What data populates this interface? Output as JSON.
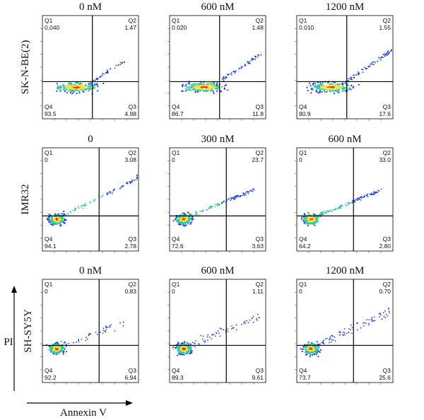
{
  "chart_data": {
    "type": "scatter",
    "subtype": "flow-cytometry-density-quadrant-plots",
    "axis_x_label": "Annexin V",
    "axis_y_label": "PI",
    "rows": [
      {
        "cell_line": "SK-N-BE(2)",
        "panels": [
          {
            "dose": "0 nM",
            "quadrants": {
              "Q1": "0.040",
              "Q2": "1.47",
              "Q3": "4.98",
              "Q4": "93.5"
            }
          },
          {
            "dose": "600 nM",
            "quadrants": {
              "Q1": "0.020",
              "Q2": "1.48",
              "Q3": "11.8",
              "Q4": "86.7"
            }
          },
          {
            "dose": "1200 nM",
            "quadrants": {
              "Q1": "0.010",
              "Q2": "1.55",
              "Q3": "17.6",
              "Q4": "80.9"
            }
          }
        ]
      },
      {
        "cell_line": "IMR32",
        "panels": [
          {
            "dose": "0",
            "quadrants": {
              "Q1": "0",
              "Q2": "3.08",
              "Q3": "2.78",
              "Q4": "94.1"
            }
          },
          {
            "dose": "300 nM",
            "quadrants": {
              "Q1": "0",
              "Q2": "23.7",
              "Q3": "3.63",
              "Q4": "72.6"
            }
          },
          {
            "dose": "600 nM",
            "quadrants": {
              "Q1": "0",
              "Q2": "33.0",
              "Q3": "2.80",
              "Q4": "64.2"
            }
          }
        ]
      },
      {
        "cell_line": "SH-SY5Y",
        "panels": [
          {
            "dose": "0 nM",
            "quadrants": {
              "Q1": "0",
              "Q2": "0.83",
              "Q3": "6.94",
              "Q4": "92.2"
            }
          },
          {
            "dose": "600 nM",
            "quadrants": {
              "Q1": "0",
              "Q2": "1.11",
              "Q3": "9.61",
              "Q4": "89.3"
            }
          },
          {
            "dose": "1200 nM",
            "quadrants": {
              "Q1": "0",
              "Q2": "0.70",
              "Q3": "25.6",
              "Q4": "73.7"
            }
          }
        ]
      }
    ],
    "quadrant_names": [
      "Q1",
      "Q2",
      "Q3",
      "Q4"
    ],
    "colors": {
      "density_low": "#1f3fd6",
      "density_mid": "#36c2a0",
      "density_high": "#f2e23a",
      "density_peak": "#e4322b",
      "gate_line": "#000000"
    }
  }
}
